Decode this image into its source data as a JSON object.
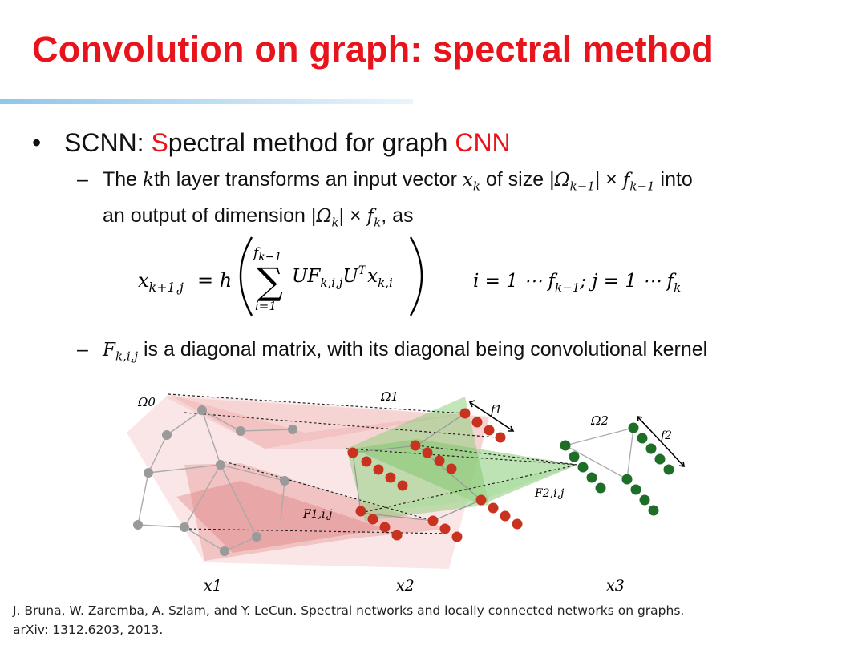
{
  "slide": {
    "title": "Convolution on graph: spectral method",
    "bullet1": {
      "marker": "•",
      "prefix": "SCNN: ",
      "s_letter": "S",
      "middle": "pectral method for graph ",
      "cnn": "CNN"
    },
    "sub1": {
      "dash": "–",
      "t1": "The ",
      "k": "k",
      "t2": "th layer transforms an input vector ",
      "x": "x",
      "xk_sub": "k",
      "t3": " of size |",
      "omega1": "Ω",
      "omega1_sub": "k−1",
      "t4": "| × ",
      "f1": "f",
      "f1_sub": "k−1",
      "t5": " into",
      "line2_t1": "an output of dimension |",
      "omega2": "Ω",
      "omega2_sub": "k",
      "line2_t2": "| × ",
      "f2": "f",
      "f2_sub": "k",
      "line2_t3": ", as"
    },
    "formula": {
      "lhs": "x",
      "lhs_sub": "k+1,j",
      "eq": "= h",
      "sum_top": "f",
      "sum_top_sub": "k−1",
      "sum": "∑",
      "sum_bottom": "i=1",
      "body": "UF",
      "body_sub": "k,i,j",
      "u2": "U",
      "u2_sup": "T",
      "x2": "x",
      "x2_sub": "k,i",
      "cond1": "i = 1 ⋯ f",
      "cond1_sub": "k−1",
      "cond2": "; j = 1 ⋯ f",
      "cond2_sub": "k"
    },
    "sub2": {
      "dash": "–",
      "F": "F",
      "F_sub": "k,i,j",
      "text": " is a diagonal matrix, with its diagonal being convolutional kernel"
    },
    "figure": {
      "omega0": "Ω0",
      "omega1": "Ω1",
      "omega2": "Ω2",
      "f1": "f1",
      "f2": "f2",
      "F1": "F1,i,j",
      "F2": "F2,i,j",
      "x1": "x1",
      "x2": "x2",
      "x3": "x3",
      "colors": {
        "layer1": "#e8a0a0",
        "nodes_red": "#c8321e",
        "nodes_green": "#1e6e28",
        "green_fill": "#7cc56a",
        "grey": "#9a9a9a"
      }
    },
    "reference": {
      "line1": "J. Bruna, W. Zaremba, A. Szlam, and Y. LeCun. Spectral networks and locally connected networks on graphs.",
      "line2": "arXiv: 1312.6203, 2013."
    }
  }
}
